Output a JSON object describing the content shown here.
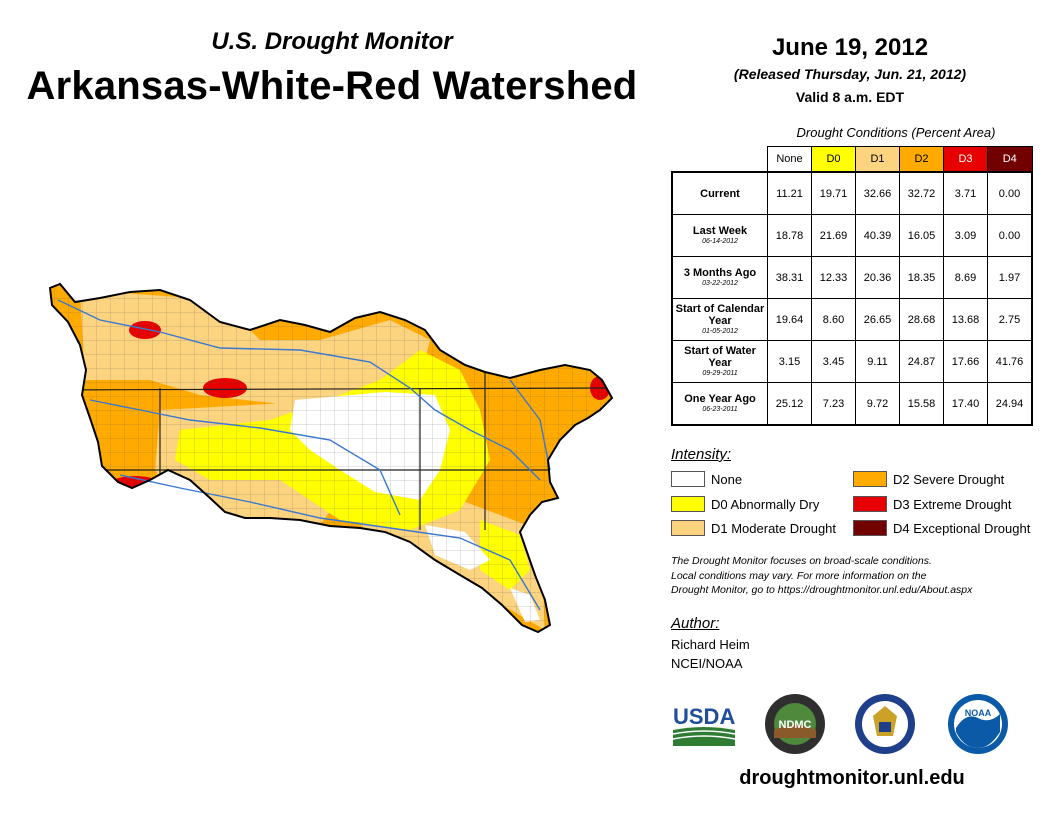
{
  "header": {
    "subtitle": "U.S. Drought Monitor",
    "title": "Arkansas-White-Red Watershed",
    "date": "June 19, 2012",
    "released": "(Released Thursday, Jun. 21, 2012)",
    "valid": "Valid 8 a.m. EDT"
  },
  "table": {
    "caption": "Drought Conditions (Percent Area)",
    "columns": [
      {
        "label": "None",
        "color": "#ffffff"
      },
      {
        "label": "D0",
        "color": "#ffff00"
      },
      {
        "label": "D1",
        "color": "#fcd37f"
      },
      {
        "label": "D2",
        "color": "#ffaa00"
      },
      {
        "label": "D3",
        "color": "#e60000"
      },
      {
        "label": "D4",
        "color": "#730000"
      }
    ],
    "rows": [
      {
        "label": "Current",
        "sub": "",
        "values": [
          "11.21",
          "19.71",
          "32.66",
          "32.72",
          "3.71",
          "0.00"
        ]
      },
      {
        "label": "Last Week",
        "sub": "06-14-2012",
        "values": [
          "18.78",
          "21.69",
          "40.39",
          "16.05",
          "3.09",
          "0.00"
        ]
      },
      {
        "label": "3 Months Ago",
        "sub": "03-22-2012",
        "values": [
          "38.31",
          "12.33",
          "20.36",
          "18.35",
          "8.69",
          "1.97"
        ]
      },
      {
        "label": "Start of Calendar Year",
        "sub": "01-05-2012",
        "values": [
          "19.64",
          "8.60",
          "26.65",
          "28.68",
          "13.68",
          "2.75"
        ]
      },
      {
        "label": "Start of Water Year",
        "sub": "09-29-2011",
        "values": [
          "3.15",
          "3.45",
          "9.11",
          "24.87",
          "17.66",
          "41.76"
        ]
      },
      {
        "label": "One Year Ago",
        "sub": "06-23-2011",
        "values": [
          "25.12",
          "7.23",
          "9.72",
          "15.58",
          "17.40",
          "24.94"
        ]
      }
    ]
  },
  "legend": {
    "title": "Intensity:",
    "items": [
      {
        "label": "None",
        "color": "#ffffff"
      },
      {
        "label": "D0 Abnormally Dry",
        "color": "#ffff00"
      },
      {
        "label": "D1 Moderate Drought",
        "color": "#fcd37f"
      },
      {
        "label": "D2 Severe Drought",
        "color": "#ffaa00"
      },
      {
        "label": "D3 Extreme Drought",
        "color": "#e60000"
      },
      {
        "label": "D4 Exceptional Drought",
        "color": "#730000"
      }
    ]
  },
  "note": {
    "line1": "The Drought Monitor focuses on broad-scale conditions.",
    "line2": "Local conditions may vary. For more information on the",
    "line3": "Drought Monitor, go to https://droughtmonitor.unl.edu/About.aspx"
  },
  "author": {
    "label": "Author:",
    "name": "Richard Heim",
    "org": "NCEI/NOAA"
  },
  "logos": {
    "usda": "USDA",
    "ndmc": "NDMC",
    "noaa": "NOAA"
  },
  "footer": {
    "url": "droughtmonitor.unl.edu"
  }
}
